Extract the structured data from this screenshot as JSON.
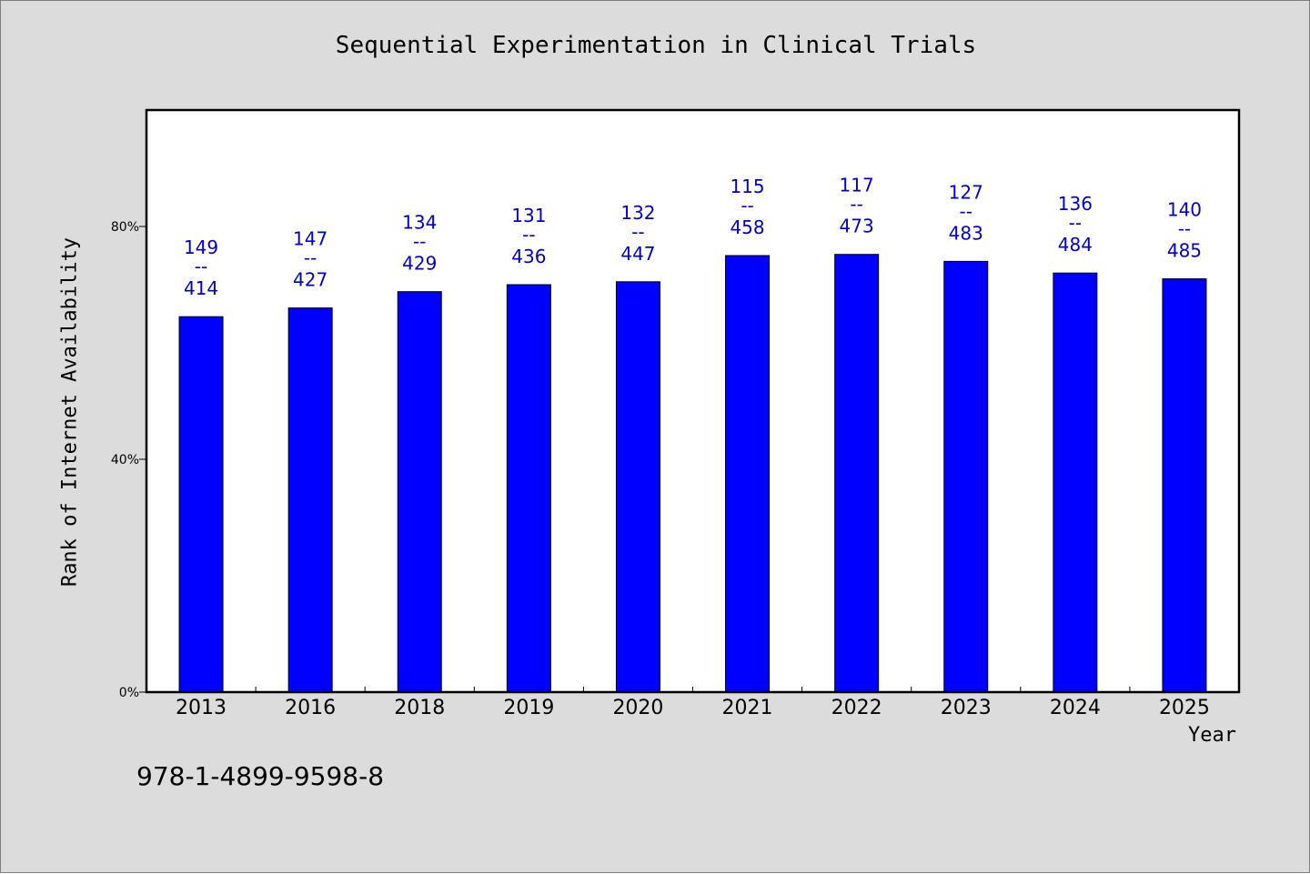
{
  "chart_data": {
    "type": "bar",
    "title": "Sequential Experimentation in Clinical Trials",
    "xlabel": "Year",
    "ylabel": "Rank of Internet Availability",
    "categories": [
      "2013",
      "2016",
      "2018",
      "2019",
      "2020",
      "2021",
      "2022",
      "2023",
      "2024",
      "2025"
    ],
    "values": [
      64.5,
      66.0,
      68.8,
      70.0,
      70.5,
      75.0,
      75.2,
      74.0,
      72.0,
      71.0
    ],
    "label_top": [
      "149",
      "147",
      "134",
      "131",
      "132",
      "115",
      "117",
      "127",
      "136",
      "140"
    ],
    "label_bottom": [
      "414",
      "427",
      "429",
      "436",
      "447",
      "458",
      "473",
      "483",
      "484",
      "485"
    ],
    "label_separator": "--",
    "ylim": [
      0,
      100
    ],
    "yticks": [
      0,
      40,
      80
    ],
    "ytick_labels": [
      "0%",
      "40%",
      "80%"
    ],
    "bar_color": "#0000ff",
    "label_color": "#0000cc",
    "plot_background": "#ffffff",
    "page_background": "#dcdcdc",
    "grid": false
  },
  "footnote": "978-1-4899-9598-8"
}
